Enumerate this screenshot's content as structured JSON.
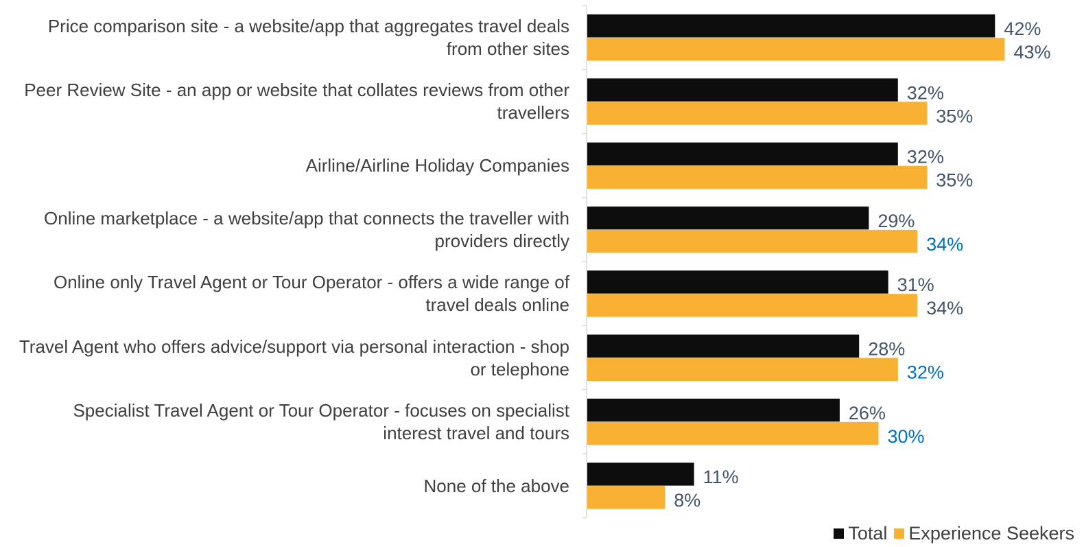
{
  "chart_data": {
    "type": "bar",
    "orientation": "horizontal",
    "categories": [
      [
        "Price comparison site - a website/app that aggregates travel deals",
        "from other sites"
      ],
      [
        "Peer Review Site - an app or website that collates reviews from other",
        "travellers"
      ],
      [
        "Airline/Airline Holiday Companies"
      ],
      [
        "Online marketplace - a website/app that connects the traveller with",
        "providers directly"
      ],
      [
        "Online only Travel Agent or Tour Operator - offers a wide range of",
        "travel deals online"
      ],
      [
        "Travel Agent who offers advice/support via personal interaction - shop",
        "or telephone"
      ],
      [
        "Specialist Travel Agent or Tour Operator - focuses on specialist",
        "interest travel and tours"
      ],
      [
        "None of the above"
      ]
    ],
    "series": [
      {
        "name": "Total",
        "color": "#0d0d0d",
        "values": [
          42,
          32,
          32,
          29,
          31,
          28,
          26,
          11
        ],
        "labels": [
          "42%",
          "32%",
          "32%",
          "29%",
          "31%",
          "28%",
          "26%",
          "11%"
        ],
        "label_colors": [
          "#44546a",
          "#44546a",
          "#44546a",
          "#44546a",
          "#44546a",
          "#44546a",
          "#44546a",
          "#44546a"
        ]
      },
      {
        "name": "Experience Seekers",
        "color": "#f8b133",
        "values": [
          43,
          35,
          35,
          34,
          34,
          32,
          30,
          8
        ],
        "labels": [
          "43%",
          "35%",
          "35%",
          "34%",
          "34%",
          "32%",
          "30%",
          "8%"
        ],
        "label_colors": [
          "#44546a",
          "#44546a",
          "#44546a",
          "#0070c0",
          "#44546a",
          "#0070c0",
          "#0070c0",
          "#44546a"
        ]
      }
    ],
    "xlim": [
      0,
      50
    ],
    "grid": false,
    "legend_position": "bottom-right"
  },
  "legend": {
    "total_label": "Total",
    "seekers_label": "Experience Seekers"
  }
}
